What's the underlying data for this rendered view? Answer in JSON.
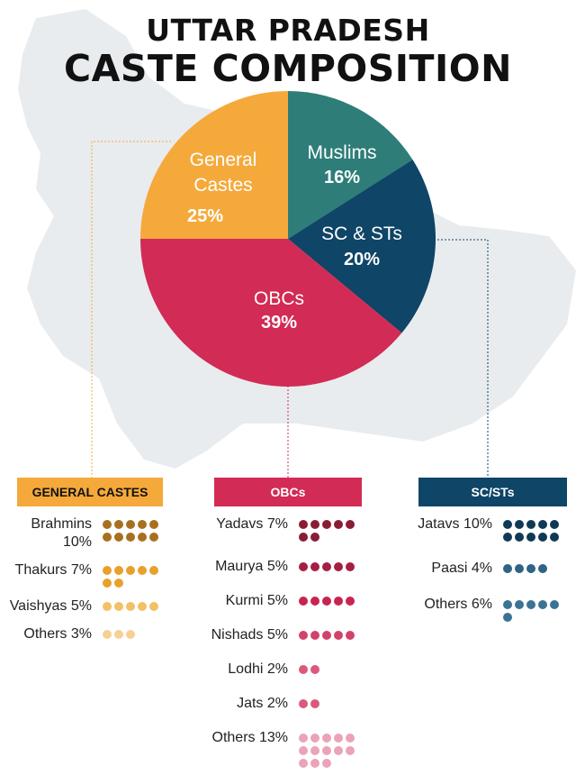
{
  "title": {
    "line1": "UTTAR PRADESH",
    "line2": "CASTE COMPOSITION"
  },
  "chart_data": {
    "type": "pie",
    "slices": [
      {
        "label_lines": [
          "Muslims"
        ],
        "value": 16,
        "value_label": "16%",
        "color": "#2E7D79"
      },
      {
        "label_lines": [
          "SC & STs"
        ],
        "value": 20,
        "value_label": "20%",
        "color": "#0F4566"
      },
      {
        "label_lines": [
          "OBCs"
        ],
        "value": 39,
        "value_label": "39%",
        "color": "#D22B55"
      },
      {
        "label_lines": [
          "General",
          "Castes"
        ],
        "value": 25,
        "value_label": "25%",
        "color": "#F5A93B"
      }
    ]
  },
  "breakdown": {
    "general": {
      "header": "GENERAL CASTES",
      "color": "#F5A93B",
      "items": [
        {
          "label": "Brahmins 10%",
          "dots": 10,
          "color": "#A8701E"
        },
        {
          "label": "Thakurs 7%",
          "dots": 7,
          "color": "#E9A02A"
        },
        {
          "label": "Vaishyas 5%",
          "dots": 5,
          "color": "#F3C066"
        },
        {
          "label": "Others 3%",
          "dots": 3,
          "color": "#F8D095"
        }
      ]
    },
    "obc": {
      "header": "OBCs",
      "color": "#D22B55",
      "items": [
        {
          "label": "Yadavs 7%",
          "dots": 7,
          "color": "#8A1C34"
        },
        {
          "label": "Maurya 5%",
          "dots": 5,
          "color": "#A61F43"
        },
        {
          "label": "Kurmi 5%",
          "dots": 5,
          "color": "#C92350"
        },
        {
          "label": "Nishads 5%",
          "dots": 5,
          "color": "#D2436A"
        },
        {
          "label": "Lodhi 2%",
          "dots": 2,
          "color": "#DA5A7C"
        },
        {
          "label": "Jats 2%",
          "dots": 2,
          "color": "#DA5A7C"
        },
        {
          "label": "Others 13%",
          "dots": 13,
          "color": "#EBA3B8"
        }
      ]
    },
    "sc": {
      "header": "SC/STs",
      "color": "#0F4566",
      "items": [
        {
          "label": "Jatavs 10%",
          "dots": 10,
          "color": "#0F3A55"
        },
        {
          "label": "Paasi 4%",
          "dots": 4,
          "color": "#2F6484"
        },
        {
          "label": "Others 6%",
          "dots": 6,
          "color": "#3B7395"
        }
      ]
    }
  }
}
